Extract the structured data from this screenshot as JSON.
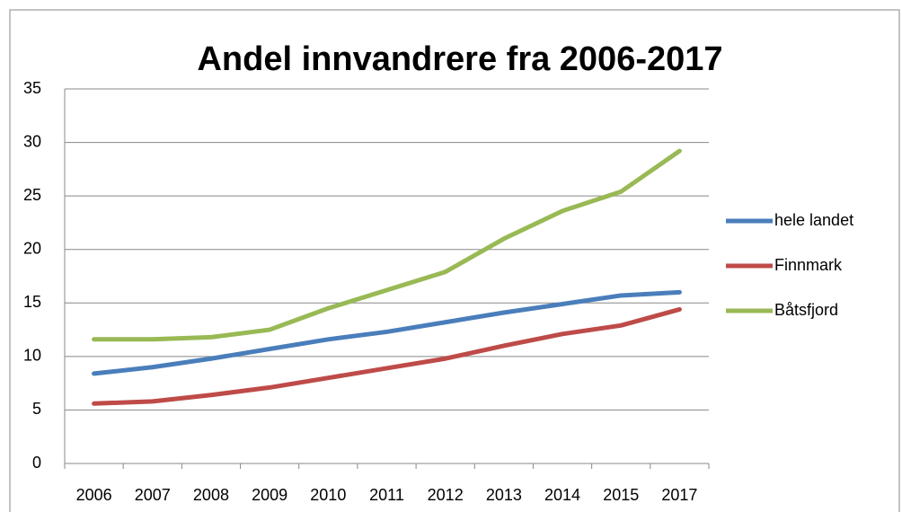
{
  "chart_data": {
    "type": "line",
    "title": "Andel innvandrere fra 2006-2017",
    "categories": [
      "2006",
      "2007",
      "2008",
      "2009",
      "2010",
      "2011",
      "2012",
      "2013",
      "2014",
      "2015",
      "2017"
    ],
    "series": [
      {
        "name": "hele landet",
        "color": "#4a7ebb",
        "values": [
          8.4,
          9.0,
          9.8,
          10.7,
          11.6,
          12.3,
          13.2,
          14.1,
          14.9,
          15.7,
          16.0
        ]
      },
      {
        "name": "Finnmark",
        "color": "#be4b48",
        "values": [
          5.6,
          5.8,
          6.4,
          7.1,
          8.0,
          8.9,
          9.8,
          11.0,
          12.1,
          12.9,
          14.4
        ]
      },
      {
        "name": "Båtsfjord",
        "color": "#98b954",
        "values": [
          11.6,
          11.6,
          11.8,
          12.5,
          14.5,
          16.2,
          17.9,
          21.0,
          23.6,
          25.4,
          29.2
        ]
      }
    ],
    "ylim": [
      0,
      35
    ],
    "yticks": [
      0,
      5,
      10,
      15,
      20,
      25,
      30,
      35
    ],
    "grid": true,
    "legend": "right"
  }
}
